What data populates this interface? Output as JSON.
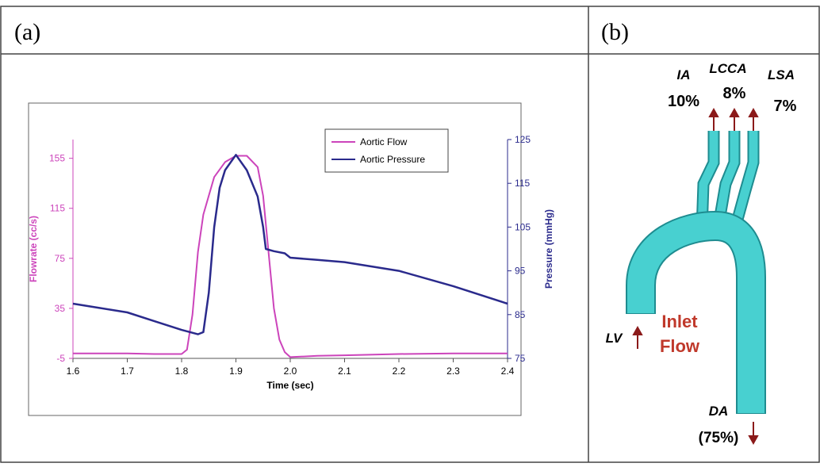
{
  "panels": {
    "a": "(a)",
    "b": "(b)"
  },
  "chart_data": {
    "type": "line",
    "xlabel": "Time (sec)",
    "ylabel": "Flowrate (cc/s)",
    "y2label": "Pressure (mmHg)",
    "xlim": [
      1.6,
      2.4
    ],
    "xticks": [
      1.6,
      1.7,
      1.8,
      1.9,
      {
        "value": 2,
        "label": "2.0"
      },
      2.1,
      2.2,
      2.3,
      2.4
    ],
    "ylim": [
      -5,
      170
    ],
    "yticks": [
      -5,
      35,
      75,
      115,
      155
    ],
    "y2lim": [
      75,
      125
    ],
    "y2ticks": [
      75,
      85,
      95,
      105,
      115,
      125
    ],
    "legend": "top-right",
    "series": [
      {
        "name": "Aortic Flow",
        "color": "#cc44bb",
        "x": [
          1.6,
          1.7,
          1.75,
          1.8,
          1.81,
          1.82,
          1.83,
          1.84,
          1.86,
          1.88,
          1.9,
          1.92,
          1.94,
          1.95,
          1.96,
          1.97,
          1.98,
          1.99,
          2.0,
          2.05,
          2.1,
          2.2,
          2.3,
          2.4
        ],
        "values": [
          -1,
          -1,
          -1.5,
          -1.5,
          2,
          30,
          80,
          110,
          140,
          152,
          157,
          157,
          148,
          125,
          80,
          35,
          10,
          0,
          -4,
          -3,
          -2.5,
          -1.5,
          -1,
          -1
        ]
      },
      {
        "name": "Aortic Pressure",
        "color": "#2a2a8c",
        "axis": "y2",
        "x": [
          1.6,
          1.65,
          1.7,
          1.75,
          1.8,
          1.83,
          1.84,
          1.85,
          1.86,
          1.87,
          1.88,
          1.9,
          1.92,
          1.94,
          1.95,
          1.955,
          1.97,
          1.99,
          2.0,
          2.05,
          2.1,
          2.2,
          2.3,
          2.4
        ],
        "values": [
          87.5,
          86.5,
          85.5,
          83.5,
          81.5,
          80.5,
          81,
          90,
          105,
          114,
          118,
          121.5,
          118,
          112,
          105,
          100,
          99.5,
          99,
          98,
          97.5,
          97,
          95,
          91.5,
          87.5
        ]
      }
    ]
  },
  "diagram": {
    "ia": "IA",
    "lcca": "LCCA",
    "lsa": "LSA",
    "ia_pct": "10%",
    "lcca_pct": "8%",
    "lsa_pct": "7%",
    "lv": "LV",
    "inlet": [
      "Inlet",
      "Flow"
    ],
    "da": "DA",
    "da_pct": "(75%)"
  }
}
